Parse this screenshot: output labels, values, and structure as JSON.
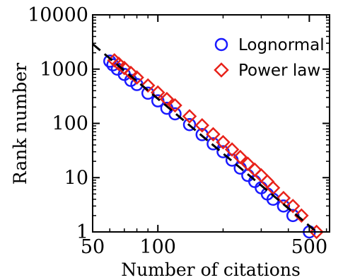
{
  "chart_data": {
    "type": "scatter",
    "xlabel": "Number of citations",
    "ylabel": "Rank number",
    "x_scale": "log",
    "y_scale": "log",
    "xlim": [
      50,
      620
    ],
    "ylim": [
      1,
      10000
    ],
    "x_ticks": [
      {
        "value": 50,
        "label": "50"
      },
      {
        "value": 100,
        "label": "100"
      },
      {
        "value": 500,
        "label": "500"
      }
    ],
    "y_ticks": [
      {
        "value": 1,
        "label": "1"
      },
      {
        "value": 10,
        "label": "10"
      },
      {
        "value": 100,
        "label": "100"
      },
      {
        "value": 1000,
        "label": "1000"
      },
      {
        "value": 10000,
        "label": "10000"
      }
    ],
    "legend": {
      "placement": "top-right"
    },
    "series": [
      {
        "name": "Lognormal",
        "marker": "circle",
        "color": "#1a1aff",
        "x": [
          60,
          62,
          65,
          70,
          75,
          80,
          90,
          100,
          110,
          120,
          140,
          160,
          180,
          200,
          220,
          240,
          260,
          280,
          300,
          320,
          340,
          380,
          420,
          500
        ],
        "y": [
          1400,
          1200,
          1000,
          800,
          620,
          520,
          360,
          260,
          190,
          150,
          95,
          62,
          42,
          30,
          21,
          15,
          11,
          8.5,
          6.5,
          5,
          4,
          3,
          2,
          1
        ]
      },
      {
        "name": "Power law",
        "marker": "diamond",
        "color": "#e8221a",
        "x": [
          63,
          66,
          70,
          75,
          80,
          90,
          100,
          110,
          120,
          140,
          160,
          180,
          200,
          220,
          240,
          260,
          280,
          300,
          320,
          340,
          380,
          420,
          460,
          540
        ],
        "y": [
          1450,
          1250,
          1050,
          850,
          700,
          500,
          370,
          280,
          215,
          135,
          92,
          63,
          45,
          33,
          24,
          18,
          14,
          11,
          8.5,
          6.5,
          4.2,
          3,
          2,
          1
        ]
      }
    ],
    "fit_line": {
      "style": "dashed",
      "color": "#000000",
      "x": [
        50,
        540
      ],
      "y": [
        2900,
        1
      ]
    }
  }
}
